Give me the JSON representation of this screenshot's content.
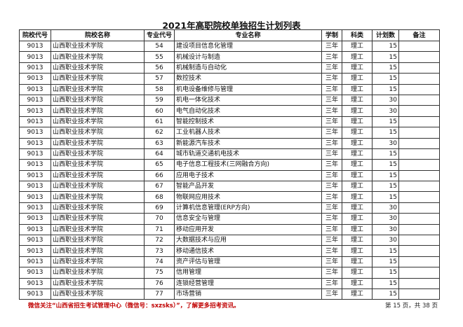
{
  "title": "2021年高职院校单独招生计划列表",
  "headers": [
    "院校代号",
    "院校名称",
    "专业代号",
    "专业名称",
    "学制",
    "科类",
    "计划数",
    "备注"
  ],
  "rows": [
    [
      "9013",
      "山西职业技术学院",
      "54",
      "建设项目信息化管理",
      "三年",
      "理工",
      "15",
      ""
    ],
    [
      "9013",
      "山西职业技术学院",
      "55",
      "机械设计与制造",
      "三年",
      "理工",
      "15",
      ""
    ],
    [
      "9013",
      "山西职业技术学院",
      "56",
      "机械制造与自动化",
      "三年",
      "理工",
      "15",
      ""
    ],
    [
      "9013",
      "山西职业技术学院",
      "57",
      "数控技术",
      "三年",
      "理工",
      "15",
      ""
    ],
    [
      "9013",
      "山西职业技术学院",
      "58",
      "机电设备维修与管理",
      "三年",
      "理工",
      "15",
      ""
    ],
    [
      "9013",
      "山西职业技术学院",
      "59",
      "机电一体化技术",
      "三年",
      "理工",
      "30",
      ""
    ],
    [
      "9013",
      "山西职业技术学院",
      "60",
      "电气自动化技术",
      "三年",
      "理工",
      "30",
      ""
    ],
    [
      "9013",
      "山西职业技术学院",
      "61",
      "智能控制技术",
      "三年",
      "理工",
      "15",
      ""
    ],
    [
      "9013",
      "山西职业技术学院",
      "62",
      "工业机器人技术",
      "三年",
      "理工",
      "15",
      ""
    ],
    [
      "9013",
      "山西职业技术学院",
      "63",
      "新能源汽车技术",
      "三年",
      "理工",
      "30",
      ""
    ],
    [
      "9013",
      "山西职业技术学院",
      "64",
      "城市轨道交通机电技术",
      "三年",
      "理工",
      "15",
      ""
    ],
    [
      "9013",
      "山西职业技术学院",
      "65",
      "电子信息工程技术(三网融合方向)",
      "三年",
      "理工",
      "15",
      ""
    ],
    [
      "9013",
      "山西职业技术学院",
      "66",
      "应用电子技术",
      "三年",
      "理工",
      "15",
      ""
    ],
    [
      "9013",
      "山西职业技术学院",
      "67",
      "智能产品开发",
      "三年",
      "理工",
      "15",
      ""
    ],
    [
      "9013",
      "山西职业技术学院",
      "68",
      "物联网应用技术",
      "三年",
      "理工",
      "15",
      ""
    ],
    [
      "9013",
      "山西职业技术学院",
      "69",
      "计算机信息管理(ERP方向)",
      "三年",
      "理工",
      "30",
      ""
    ],
    [
      "9013",
      "山西职业技术学院",
      "70",
      "信息安全与管理",
      "三年",
      "理工",
      "30",
      ""
    ],
    [
      "9013",
      "山西职业技术学院",
      "71",
      "移动应用开发",
      "三年",
      "理工",
      "30",
      ""
    ],
    [
      "9013",
      "山西职业技术学院",
      "72",
      "大数据技术与应用",
      "三年",
      "理工",
      "30",
      ""
    ],
    [
      "9013",
      "山西职业技术学院",
      "73",
      "移动通信技术",
      "三年",
      "理工",
      "15",
      ""
    ],
    [
      "9013",
      "山西职业技术学院",
      "74",
      "资产评估与管理",
      "三年",
      "理工",
      "15",
      ""
    ],
    [
      "9013",
      "山西职业技术学院",
      "75",
      "信用管理",
      "三年",
      "理工",
      "15",
      ""
    ],
    [
      "9013",
      "山西职业技术学院",
      "76",
      "连锁经营管理",
      "三年",
      "理工",
      "15",
      ""
    ],
    [
      "9013",
      "山西职业技术学院",
      "77",
      "市场营销",
      "三年",
      "理工",
      "15",
      ""
    ]
  ],
  "footnote": "微信关注“山西省招生考试管理中心（微信号：sxzsks）”，了解更多招考资讯。",
  "page_number": "第 15 页，共 38 页",
  "colors": {
    "footnote": "#c00000",
    "border": "#333333"
  }
}
